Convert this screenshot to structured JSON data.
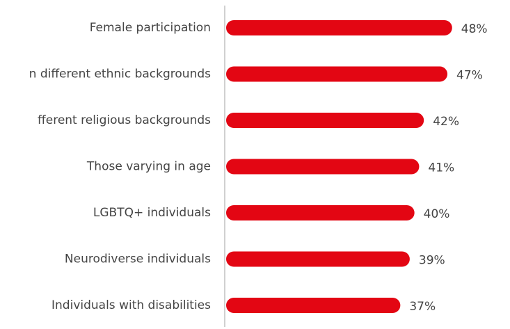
{
  "chart_data": {
    "type": "barh",
    "categories": [
      "Female participation",
      "n different ethnic backgrounds",
      "fferent religious backgrounds",
      "Those varying in age",
      "LGBTQ+ individuals",
      "Neurodiverse individuals",
      "Individuals with disabilities"
    ],
    "values": [
      48,
      47,
      42,
      41,
      40,
      39,
      37
    ],
    "value_labels": [
      "48%",
      "47%",
      "42%",
      "41%",
      "40%",
      "39%",
      "37%"
    ],
    "color": "#e30613",
    "xlim": [
      0,
      60
    ]
  }
}
